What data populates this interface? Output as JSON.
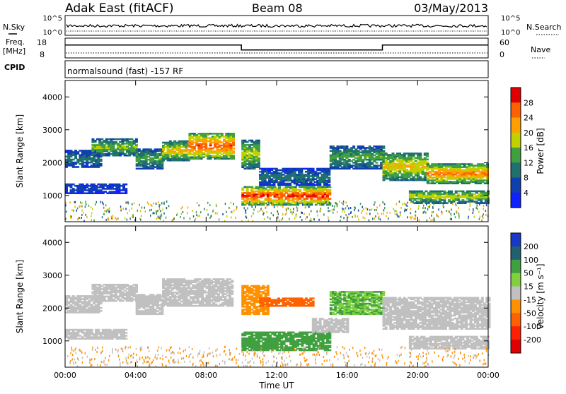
{
  "header": {
    "station": "Adak East (fitACF)",
    "beam": "Beam 08",
    "date": "03/May/2013"
  },
  "top_panels": {
    "nsky_label": "N.Sky",
    "nsky_top_tick": "10^5",
    "nsky_bottom_tick": "10^0",
    "nsearch_label": "N.Search",
    "freq_label_line1": "Freq.",
    "freq_label_line2": "[MHz]",
    "freq_ticks": [
      "18",
      "8"
    ],
    "nave_label": "Nave",
    "nave_ticks": [
      "60",
      "0"
    ],
    "cpid_label": "CPID",
    "cpid_text": "normalsound (fast) -157 RF",
    "frequency_mhz_steps": [
      {
        "start_hour": 0,
        "end_hour": 10,
        "mhz": 14.5
      },
      {
        "start_hour": 10,
        "end_hour": 18,
        "mhz": 12
      },
      {
        "start_hour": 18,
        "end_hour": 24,
        "mhz": 14.5
      }
    ]
  },
  "colorbars": {
    "power": {
      "label": "Power [dB]",
      "ticks": [
        "28",
        "24",
        "20",
        "16",
        "12",
        "8",
        "4"
      ],
      "colors": [
        "#e00000",
        "#ff6000",
        "#ffa000",
        "#c0d000",
        "#40a040",
        "#207070",
        "#1040b0",
        "#1020ff"
      ]
    },
    "velocity": {
      "label": "Velocity [m s⁻¹]",
      "ticks": [
        "200",
        "100",
        "50",
        "15",
        "-15",
        "-50",
        "-100",
        "-200"
      ],
      "colors": [
        "#1838c8",
        "#206070",
        "#40a040",
        "#80d040",
        "#c0c0c0",
        "#ff9000",
        "#ff6000",
        "#ff2000",
        "#e00000"
      ]
    }
  },
  "chart_data": [
    {
      "type": "heatmap",
      "title": "Power",
      "xlabel": "Time UT",
      "ylabel": "Slant Range [km]",
      "xlim": [
        0,
        24
      ],
      "ylim": [
        200,
        4500
      ],
      "y_ticks": [
        "4000",
        "3000",
        "2000",
        "1000"
      ],
      "x_ticks": [
        "00:00",
        "04:00",
        "08:00",
        "12:00",
        "16:00",
        "20:00",
        "00:00"
      ],
      "bands": [
        {
          "t0": 0.0,
          "t1": 2.0,
          "r0": 1850,
          "r1": 2350,
          "db": 10
        },
        {
          "t0": 1.5,
          "t1": 4.0,
          "r0": 2200,
          "r1": 2700,
          "db": 16
        },
        {
          "t0": 4.0,
          "t1": 5.5,
          "r0": 1800,
          "r1": 2400,
          "db": 14
        },
        {
          "t0": 5.5,
          "t1": 7.0,
          "r0": 2050,
          "r1": 2650,
          "db": 20
        },
        {
          "t0": 7.0,
          "t1": 9.5,
          "r0": 2100,
          "r1": 2900,
          "db": 26
        },
        {
          "t0": 10.0,
          "t1": 11.0,
          "r0": 1800,
          "r1": 2700,
          "db": 18
        },
        {
          "t0": 10.0,
          "t1": 15.0,
          "r0": 700,
          "r1": 1250,
          "db": 28
        },
        {
          "t0": 11.0,
          "t1": 15.0,
          "r0": 1300,
          "r1": 1800,
          "db": 10
        },
        {
          "t0": 15.0,
          "t1": 18.0,
          "r0": 1800,
          "r1": 2500,
          "db": 14
        },
        {
          "t0": 18.0,
          "t1": 20.5,
          "r0": 1450,
          "r1": 2300,
          "db": 20
        },
        {
          "t0": 20.5,
          "t1": 24.0,
          "r0": 1350,
          "r1": 1950,
          "db": 24
        },
        {
          "t0": 19.5,
          "t1": 24.0,
          "r0": 750,
          "r1": 1150,
          "db": 18
        },
        {
          "t0": 0.0,
          "t1": 3.5,
          "r0": 1050,
          "r1": 1350,
          "db": 6
        }
      ]
    },
    {
      "type": "heatmap",
      "title": "Velocity",
      "xlabel": "Time UT",
      "ylabel": "Slant Range [km]",
      "xlim": [
        0,
        24
      ],
      "ylim": [
        200,
        4500
      ],
      "y_ticks": [
        "4000",
        "3000",
        "2000",
        "1000"
      ],
      "x_ticks": [
        "00:00",
        "04:00",
        "08:00",
        "12:00",
        "16:00",
        "20:00",
        "00:00"
      ],
      "bands": [
        {
          "t0": 0.0,
          "t1": 2.0,
          "r0": 1850,
          "r1": 2350,
          "v": 0
        },
        {
          "t0": 1.5,
          "t1": 4.0,
          "r0": 2200,
          "r1": 2700,
          "v": 0
        },
        {
          "t0": 4.0,
          "t1": 5.5,
          "r0": 1800,
          "r1": 2400,
          "v": 0
        },
        {
          "t0": 5.5,
          "t1": 9.5,
          "r0": 2050,
          "r1": 2900,
          "v": 0
        },
        {
          "t0": 10.0,
          "t1": 11.5,
          "r0": 1800,
          "r1": 2700,
          "v": -40
        },
        {
          "t0": 11.0,
          "t1": 14.0,
          "r0": 2050,
          "r1": 2300,
          "v": -60
        },
        {
          "t0": 10.0,
          "t1": 15.0,
          "r0": 700,
          "r1": 1250,
          "v": 60
        },
        {
          "t0": 14.0,
          "t1": 16.0,
          "r0": 1250,
          "r1": 1700,
          "v": 0
        },
        {
          "t0": 15.0,
          "t1": 18.0,
          "r0": 1800,
          "r1": 2500,
          "v": 50
        },
        {
          "t0": 18.0,
          "t1": 24.0,
          "r0": 1350,
          "r1": 2300,
          "v": 0
        },
        {
          "t0": 19.5,
          "t1": 24.0,
          "r0": 750,
          "r1": 1150,
          "v": 0
        },
        {
          "t0": 0.0,
          "t1": 3.5,
          "r0": 1050,
          "r1": 1350,
          "v": 0
        }
      ]
    }
  ]
}
